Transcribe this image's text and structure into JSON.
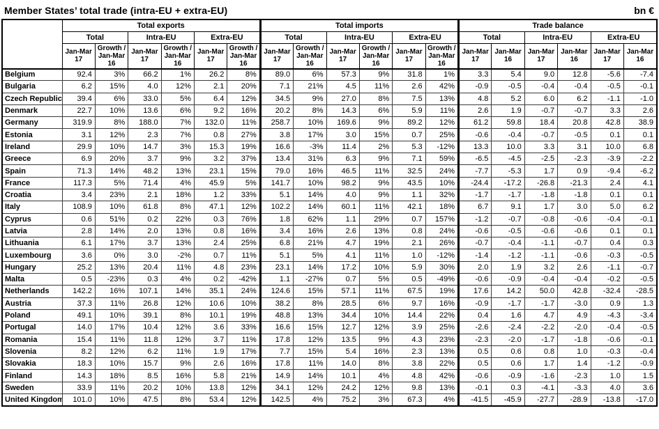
{
  "title": "Member States’ total trade (intra-EU + extra-EU)",
  "unit": "bn €",
  "colors": {
    "text": "#000000",
    "border": "#000000",
    "background": "#ffffff"
  },
  "table": {
    "header": {
      "groups": [
        {
          "label": "Total exports",
          "subgroups": [
            "Total",
            "Intra-EU",
            "Extra-EU"
          ],
          "col_pair": [
            "Jan-Mar 17",
            "Growth / Jan-Mar 16"
          ]
        },
        {
          "label": "Total imports",
          "subgroups": [
            "Total",
            "Intra-EU",
            "Extra-EU"
          ],
          "col_pair": [
            "Jan-Mar 17",
            "Growth / Jan-Mar 16"
          ]
        },
        {
          "label": "Trade balance",
          "subgroups": [
            "Total",
            "Intra-EU",
            "Extra-EU"
          ],
          "col_pair": [
            "Jan-Mar 17",
            "Jan-Mar 16"
          ]
        }
      ]
    },
    "rows": [
      {
        "country": "Belgium",
        "values": [
          "92.4",
          "3%",
          "66.2",
          "1%",
          "26.2",
          "8%",
          "89.0",
          "6%",
          "57.3",
          "9%",
          "31.8",
          "1%",
          "3.3",
          "5.4",
          "9.0",
          "12.8",
          "-5.6",
          "-7.4"
        ]
      },
      {
        "country": "Bulgaria",
        "values": [
          "6.2",
          "15%",
          "4.0",
          "12%",
          "2.1",
          "20%",
          "7.1",
          "21%",
          "4.5",
          "11%",
          "2.6",
          "42%",
          "-0.9",
          "-0.5",
          "-0.4",
          "-0.4",
          "-0.5",
          "-0.1"
        ]
      },
      {
        "country": "Czech Republic",
        "values": [
          "39.4",
          "6%",
          "33.0",
          "5%",
          "6.4",
          "12%",
          "34.5",
          "9%",
          "27.0",
          "8%",
          "7.5",
          "13%",
          "4.8",
          "5.2",
          "6.0",
          "6.2",
          "-1.1",
          "-1.0"
        ]
      },
      {
        "country": "Denmark",
        "values": [
          "22.7",
          "10%",
          "13.6",
          "6%",
          "9.2",
          "16%",
          "20.2",
          "8%",
          "14.3",
          "6%",
          "5.9",
          "11%",
          "2.6",
          "1.9",
          "-0.7",
          "-0.7",
          "3.3",
          "2.6"
        ]
      },
      {
        "country": "Germany",
        "values": [
          "319.9",
          "8%",
          "188.0",
          "7%",
          "132.0",
          "11%",
          "258.7",
          "10%",
          "169.6",
          "9%",
          "89.2",
          "12%",
          "61.2",
          "59.8",
          "18.4",
          "20.8",
          "42.8",
          "38.9"
        ]
      },
      {
        "country": "Estonia",
        "values": [
          "3.1",
          "12%",
          "2.3",
          "7%",
          "0.8",
          "27%",
          "3.8",
          "17%",
          "3.0",
          "15%",
          "0.7",
          "25%",
          "-0.6",
          "-0.4",
          "-0.7",
          "-0.5",
          "0.1",
          "0.1"
        ]
      },
      {
        "country": "Ireland",
        "values": [
          "29.9",
          "10%",
          "14.7",
          "3%",
          "15.3",
          "19%",
          "16.6",
          "-3%",
          "11.4",
          "2%",
          "5.3",
          "-12%",
          "13.3",
          "10.0",
          "3.3",
          "3.1",
          "10.0",
          "6.8"
        ]
      },
      {
        "country": "Greece",
        "values": [
          "6.9",
          "20%",
          "3.7",
          "9%",
          "3.2",
          "37%",
          "13.4",
          "31%",
          "6.3",
          "9%",
          "7.1",
          "59%",
          "-6.5",
          "-4.5",
          "-2.5",
          "-2.3",
          "-3.9",
          "-2.2"
        ]
      },
      {
        "country": "Spain",
        "values": [
          "71.3",
          "14%",
          "48.2",
          "13%",
          "23.1",
          "15%",
          "79.0",
          "16%",
          "46.5",
          "11%",
          "32.5",
          "24%",
          "-7.7",
          "-5.3",
          "1.7",
          "0.9",
          "-9.4",
          "-6.2"
        ]
      },
      {
        "country": "France",
        "values": [
          "117.3",
          "5%",
          "71.4",
          "4%",
          "45.9",
          "5%",
          "141.7",
          "10%",
          "98.2",
          "9%",
          "43.5",
          "10%",
          "-24.4",
          "-17.2",
          "-26.8",
          "-21.3",
          "2.4",
          "4.1"
        ]
      },
      {
        "country": "Croatia",
        "values": [
          "3.4",
          "23%",
          "2.1",
          "18%",
          "1.2",
          "33%",
          "5.1",
          "14%",
          "4.0",
          "9%",
          "1.1",
          "32%",
          "-1.7",
          "-1.7",
          "-1.8",
          "-1.8",
          "0.1",
          "0.1"
        ]
      },
      {
        "country": "Italy",
        "values": [
          "108.9",
          "10%",
          "61.8",
          "8%",
          "47.1",
          "12%",
          "102.2",
          "14%",
          "60.1",
          "11%",
          "42.1",
          "18%",
          "6.7",
          "9.1",
          "1.7",
          "3.0",
          "5.0",
          "6.2"
        ]
      },
      {
        "country": "Cyprus",
        "values": [
          "0.6",
          "51%",
          "0.2",
          "22%",
          "0.3",
          "76%",
          "1.8",
          "62%",
          "1.1",
          "29%",
          "0.7",
          "157%",
          "-1.2",
          "-0.7",
          "-0.8",
          "-0.6",
          "-0.4",
          "-0.1"
        ]
      },
      {
        "country": "Latvia",
        "values": [
          "2.8",
          "14%",
          "2.0",
          "13%",
          "0.8",
          "16%",
          "3.4",
          "16%",
          "2.6",
          "13%",
          "0.8",
          "24%",
          "-0.6",
          "-0.5",
          "-0.6",
          "-0.6",
          "0.1",
          "0.1"
        ]
      },
      {
        "country": "Lithuania",
        "values": [
          "6.1",
          "17%",
          "3.7",
          "13%",
          "2.4",
          "25%",
          "6.8",
          "21%",
          "4.7",
          "19%",
          "2.1",
          "26%",
          "-0.7",
          "-0.4",
          "-1.1",
          "-0.7",
          "0.4",
          "0.3"
        ]
      },
      {
        "country": "Luxembourg",
        "values": [
          "3.6",
          "0%",
          "3.0",
          "-2%",
          "0.7",
          "11%",
          "5.1",
          "5%",
          "4.1",
          "11%",
          "1.0",
          "-12%",
          "-1.4",
          "-1.2",
          "-1.1",
          "-0.6",
          "-0.3",
          "-0.5"
        ]
      },
      {
        "country": "Hungary",
        "values": [
          "25.2",
          "13%",
          "20.4",
          "11%",
          "4.8",
          "23%",
          "23.1",
          "14%",
          "17.2",
          "10%",
          "5.9",
          "30%",
          "2.0",
          "1.9",
          "3.2",
          "2.6",
          "-1.1",
          "-0.7"
        ]
      },
      {
        "country": "Malta",
        "values": [
          "0.5",
          "-23%",
          "0.3",
          "4%",
          "0.2",
          "-42%",
          "1.1",
          "-27%",
          "0.7",
          "5%",
          "0.5",
          "-49%",
          "-0.6",
          "-0.9",
          "-0.4",
          "-0.4",
          "-0.2",
          "-0.5"
        ]
      },
      {
        "country": "Netherlands",
        "values": [
          "142.2",
          "16%",
          "107.1",
          "14%",
          "35.1",
          "24%",
          "124.6",
          "15%",
          "57.1",
          "11%",
          "67.5",
          "19%",
          "17.6",
          "14.2",
          "50.0",
          "42.8",
          "-32.4",
          "-28.5"
        ]
      },
      {
        "country": "Austria",
        "values": [
          "37.3",
          "11%",
          "26.8",
          "12%",
          "10.6",
          "10%",
          "38.2",
          "8%",
          "28.5",
          "6%",
          "9.7",
          "16%",
          "-0.9",
          "-1.7",
          "-1.7",
          "-3.0",
          "0.9",
          "1.3"
        ]
      },
      {
        "country": "Poland",
        "values": [
          "49.1",
          "10%",
          "39.1",
          "8%",
          "10.1",
          "19%",
          "48.8",
          "13%",
          "34.4",
          "10%",
          "14.4",
          "22%",
          "0.4",
          "1.6",
          "4.7",
          "4.9",
          "-4.3",
          "-3.4"
        ]
      },
      {
        "country": "Portugal",
        "values": [
          "14.0",
          "17%",
          "10.4",
          "12%",
          "3.6",
          "33%",
          "16.6",
          "15%",
          "12.7",
          "12%",
          "3.9",
          "25%",
          "-2.6",
          "-2.4",
          "-2.2",
          "-2.0",
          "-0.4",
          "-0.5"
        ]
      },
      {
        "country": "Romania",
        "values": [
          "15.4",
          "11%",
          "11.8",
          "12%",
          "3.7",
          "11%",
          "17.8",
          "12%",
          "13.5",
          "9%",
          "4.3",
          "23%",
          "-2.3",
          "-2.0",
          "-1.7",
          "-1.8",
          "-0.6",
          "-0.1"
        ]
      },
      {
        "country": "Slovenia",
        "values": [
          "8.2",
          "12%",
          "6.2",
          "11%",
          "1.9",
          "17%",
          "7.7",
          "15%",
          "5.4",
          "16%",
          "2.3",
          "13%",
          "0.5",
          "0.6",
          "0.8",
          "1.0",
          "-0.3",
          "-0.4"
        ]
      },
      {
        "country": "Slovakia",
        "values": [
          "18.3",
          "10%",
          "15.7",
          "9%",
          "2.6",
          "16%",
          "17.8",
          "11%",
          "14.0",
          "8%",
          "3.8",
          "22%",
          "0.5",
          "0.6",
          "1.7",
          "1.4",
          "-1.2",
          "-0.9"
        ]
      },
      {
        "country": "Finland",
        "values": [
          "14.3",
          "18%",
          "8.5",
          "16%",
          "5.8",
          "21%",
          "14.9",
          "14%",
          "10.1",
          "4%",
          "4.8",
          "42%",
          "-0.6",
          "-0.9",
          "-1.6",
          "-2.3",
          "1.0",
          "1.5"
        ]
      },
      {
        "country": "Sweden",
        "values": [
          "33.9",
          "11%",
          "20.2",
          "10%",
          "13.8",
          "12%",
          "34.1",
          "12%",
          "24.2",
          "12%",
          "9.8",
          "13%",
          "-0.1",
          "0.3",
          "-4.1",
          "-3.3",
          "4.0",
          "3.6"
        ]
      },
      {
        "country": "United Kingdom",
        "values": [
          "101.0",
          "10%",
          "47.5",
          "8%",
          "53.4",
          "12%",
          "142.5",
          "4%",
          "75.2",
          "3%",
          "67.3",
          "4%",
          "-41.5",
          "-45.9",
          "-27.7",
          "-28.9",
          "-13.8",
          "-17.0"
        ]
      }
    ]
  }
}
